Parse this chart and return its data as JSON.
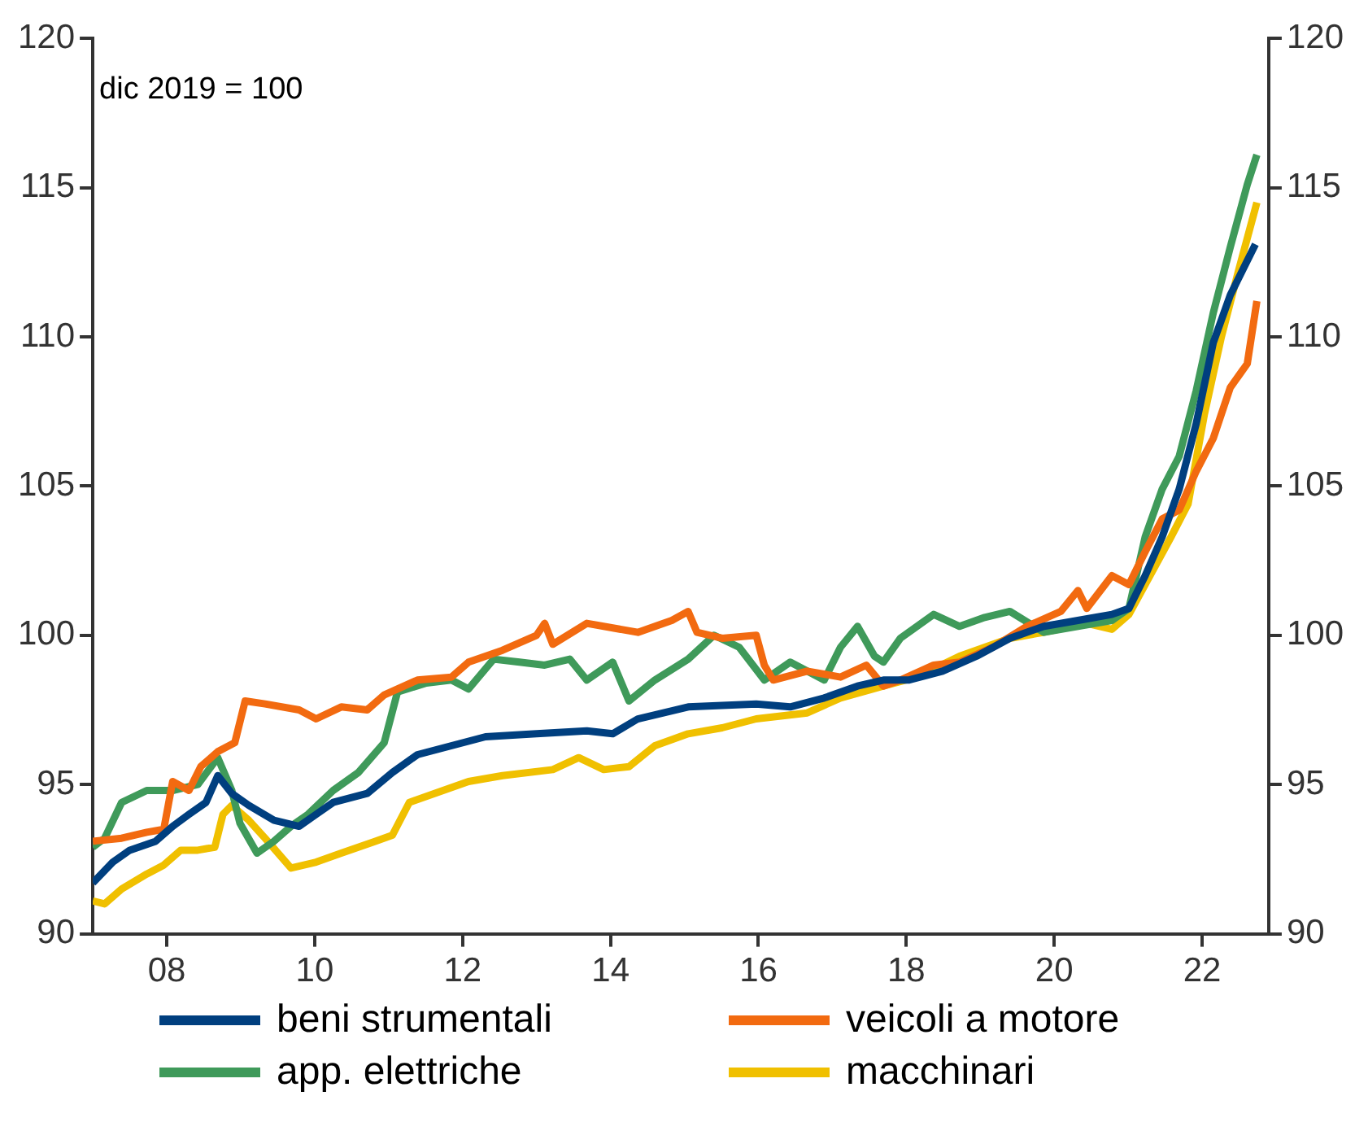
{
  "chart_data": {
    "type": "line",
    "annotations": [
      "dic 2019 = 100"
    ],
    "xlim": [
      2007,
      2022.9
    ],
    "xticks": [
      {
        "value": 2008,
        "label": "08"
      },
      {
        "value": 2010,
        "label": "10"
      },
      {
        "value": 2012,
        "label": "12"
      },
      {
        "value": 2014,
        "label": "14"
      },
      {
        "value": 2016,
        "label": "16"
      },
      {
        "value": 2018,
        "label": "18"
      },
      {
        "value": 2020,
        "label": "20"
      },
      {
        "value": 2022,
        "label": "22"
      }
    ],
    "ylim": [
      90,
      120
    ],
    "yticks": [
      90,
      95,
      100,
      105,
      110,
      115,
      120
    ],
    "y2lim": [
      90,
      120
    ],
    "y2ticks": [
      90,
      95,
      100,
      105,
      110,
      115,
      120
    ],
    "grid": false,
    "legend": "bottom",
    "marker": "none",
    "line_style": "solid",
    "series": [
      {
        "name": "beni strumentali",
        "color": "#003f7f",
        "x": [
          2007.0,
          2007.27,
          2007.5,
          2007.85,
          2008.08,
          2008.3,
          2008.53,
          2008.69,
          2008.88,
          2009.11,
          2009.45,
          2009.79,
          2010.02,
          2010.25,
          2010.71,
          2011.05,
          2011.39,
          2011.85,
          2012.31,
          2013.0,
          2013.68,
          2014.03,
          2014.37,
          2015.05,
          2015.97,
          2016.43,
          2016.89,
          2017.34,
          2017.69,
          2018.03,
          2018.49,
          2018.95,
          2019.4,
          2019.86,
          2020.32,
          2020.78,
          2021.01,
          2021.23,
          2021.46,
          2021.69,
          2021.92,
          2022.15,
          2022.38,
          2022.72
        ],
        "values": [
          91.7,
          92.4,
          92.8,
          93.1,
          93.6,
          94.0,
          94.4,
          95.3,
          94.7,
          94.3,
          93.8,
          93.6,
          94.0,
          94.4,
          94.7,
          95.4,
          96.0,
          96.3,
          96.6,
          96.7,
          96.8,
          96.7,
          97.2,
          97.6,
          97.7,
          97.6,
          97.9,
          98.3,
          98.5,
          98.5,
          98.8,
          99.3,
          99.9,
          100.3,
          100.5,
          100.7,
          100.9,
          102.0,
          103.3,
          104.9,
          107.1,
          109.8,
          111.4,
          113.1
        ]
      },
      {
        "name": "veicoli a motore",
        "color": "#f26a10",
        "x": [
          2007.0,
          2007.39,
          2007.73,
          2007.96,
          2008.08,
          2008.3,
          2008.46,
          2008.69,
          2008.92,
          2009.06,
          2009.33,
          2009.79,
          2010.02,
          2010.36,
          2010.71,
          2010.94,
          2011.39,
          2011.85,
          2012.08,
          2012.54,
          2013.0,
          2013.11,
          2013.22,
          2013.68,
          2014.37,
          2014.83,
          2015.05,
          2015.17,
          2015.51,
          2015.97,
          2016.08,
          2016.2,
          2016.66,
          2017.11,
          2017.46,
          2017.69,
          2017.92,
          2018.37,
          2018.72,
          2019.17,
          2019.63,
          2020.09,
          2020.32,
          2020.44,
          2020.78,
          2021.01,
          2021.23,
          2021.46,
          2021.69,
          2021.92,
          2022.15,
          2022.38,
          2022.61,
          2022.74
        ],
        "values": [
          93.1,
          93.2,
          93.4,
          93.5,
          95.1,
          94.8,
          95.6,
          96.1,
          96.4,
          97.8,
          97.7,
          97.5,
          97.2,
          97.6,
          97.5,
          98.0,
          98.5,
          98.6,
          99.1,
          99.5,
          100.0,
          100.4,
          99.7,
          100.4,
          100.1,
          100.5,
          100.8,
          100.1,
          99.9,
          100.0,
          99.0,
          98.5,
          98.8,
          98.6,
          99.0,
          98.3,
          98.5,
          99.0,
          99.1,
          99.6,
          100.3,
          100.8,
          101.5,
          100.9,
          102.0,
          101.7,
          102.8,
          103.9,
          104.2,
          105.5,
          106.6,
          108.3,
          109.1,
          111.2
        ]
      },
      {
        "name": "app. elettriche",
        "color": "#3f9a5a",
        "x": [
          2007.0,
          2007.16,
          2007.39,
          2007.73,
          2008.08,
          2008.42,
          2008.69,
          2008.88,
          2008.99,
          2009.22,
          2009.45,
          2009.68,
          2009.91,
          2010.25,
          2010.59,
          2010.94,
          2011.12,
          2011.51,
          2011.85,
          2012.08,
          2012.42,
          2012.77,
          2013.11,
          2013.45,
          2013.68,
          2014.03,
          2014.25,
          2014.6,
          2015.05,
          2015.4,
          2015.74,
          2016.08,
          2016.43,
          2016.89,
          2017.11,
          2017.34,
          2017.57,
          2017.69,
          2017.92,
          2018.37,
          2018.72,
          2019.06,
          2019.4,
          2019.86,
          2020.32,
          2020.78,
          2021.01,
          2021.23,
          2021.46,
          2021.69,
          2021.92,
          2022.15,
          2022.38,
          2022.61,
          2022.74
        ],
        "values": [
          92.9,
          93.2,
          94.4,
          94.8,
          94.8,
          95.0,
          95.9,
          94.8,
          93.7,
          92.7,
          93.1,
          93.6,
          94.0,
          94.8,
          95.4,
          96.4,
          98.1,
          98.4,
          98.5,
          98.2,
          99.2,
          99.1,
          99.0,
          99.2,
          98.5,
          99.1,
          97.8,
          98.5,
          99.2,
          100.0,
          99.6,
          98.5,
          99.1,
          98.5,
          99.6,
          100.3,
          99.3,
          99.1,
          99.9,
          100.7,
          100.3,
          100.6,
          100.8,
          100.1,
          100.3,
          100.5,
          100.9,
          103.3,
          104.9,
          106.0,
          108.2,
          110.8,
          113.0,
          115.1,
          116.1
        ]
      },
      {
        "name": "macchinari",
        "color": "#f0c000",
        "x": [
          2007.0,
          2007.16,
          2007.39,
          2007.73,
          2007.96,
          2008.19,
          2008.42,
          2008.65,
          2008.76,
          2008.88,
          2009.11,
          2009.33,
          2009.68,
          2010.02,
          2010.36,
          2010.82,
          2011.05,
          2011.28,
          2011.62,
          2012.08,
          2012.54,
          2013.22,
          2013.57,
          2013.91,
          2014.25,
          2014.6,
          2015.05,
          2015.51,
          2015.97,
          2016.66,
          2017.11,
          2017.69,
          2018.14,
          2018.72,
          2019.4,
          2019.86,
          2020.44,
          2020.78,
          2021.01,
          2021.23,
          2021.58,
          2021.81,
          2022.03,
          2022.26,
          2022.49,
          2022.74
        ],
        "values": [
          91.1,
          91.0,
          91.5,
          92.0,
          92.3,
          92.8,
          92.8,
          92.9,
          94.0,
          94.3,
          93.8,
          93.2,
          92.2,
          92.4,
          92.7,
          93.1,
          93.3,
          94.4,
          94.7,
          95.1,
          95.3,
          95.5,
          95.9,
          95.5,
          95.6,
          96.3,
          96.7,
          96.9,
          97.2,
          97.4,
          97.9,
          98.3,
          98.6,
          99.3,
          99.9,
          100.1,
          100.4,
          100.2,
          100.7,
          101.7,
          103.3,
          104.4,
          107.4,
          110.0,
          112.2,
          114.5
        ]
      }
    ]
  }
}
